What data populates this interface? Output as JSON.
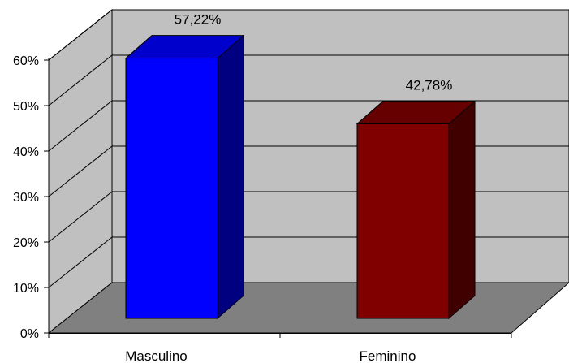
{
  "chart_data": {
    "type": "bar",
    "categories": [
      "Masculino",
      "Feminino"
    ],
    "values": [
      57.22,
      42.78
    ],
    "data_labels": [
      "57,22%",
      "42,78%"
    ],
    "y_ticks": [
      "0%",
      "10%",
      "20%",
      "30%",
      "40%",
      "50%",
      "60%"
    ],
    "ylim": [
      0,
      60
    ],
    "grid": true,
    "legend": "none",
    "three_d": true,
    "colors": {
      "bars": [
        "#0000ff",
        "#800000"
      ],
      "bar_sides": [
        "#000080",
        "#400000"
      ],
      "bar_tops": [
        "#0000cc",
        "#660000"
      ],
      "back_wall": "#c0c0c0",
      "side_wall": "#c0c0c0",
      "floor": "#808080"
    }
  }
}
